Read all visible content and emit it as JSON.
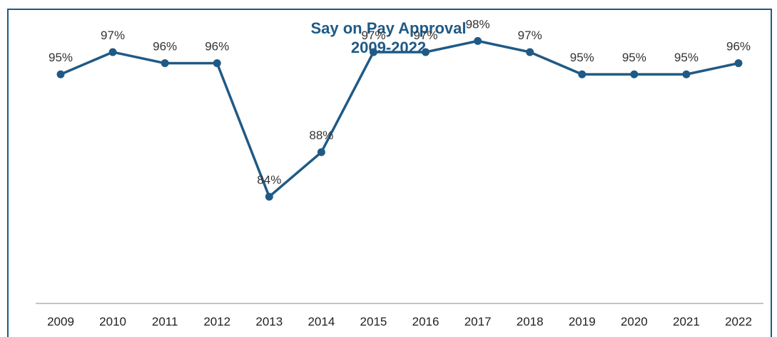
{
  "chart_data": {
    "type": "line",
    "title": "Say on Pay Approval",
    "subtitle": "2009-2022",
    "xlabel": "",
    "ylabel": "",
    "categories": [
      "2009",
      "2010",
      "2011",
      "2012",
      "2013",
      "2014",
      "2015",
      "2016",
      "2017",
      "2018",
      "2019",
      "2020",
      "2021",
      "2022"
    ],
    "series": [
      {
        "values": [
          95,
          97,
          96,
          96,
          84,
          88,
          97,
          97,
          98,
          97,
          95,
          95,
          95,
          96
        ],
        "labels": [
          "95%",
          "97%",
          "96%",
          "96%",
          "84%",
          "88%",
          "97%",
          "97%",
          "98%",
          "97%",
          "95%",
          "95%",
          "95%",
          "96%"
        ],
        "color": "#1f5a86"
      }
    ],
    "ylim": [
      74.4,
      100.4
    ],
    "grid": false,
    "legend": "none"
  },
  "colors": {
    "frame": "#1f5a86",
    "line": "#1f5a86",
    "axis": "#b0b0b0"
  }
}
